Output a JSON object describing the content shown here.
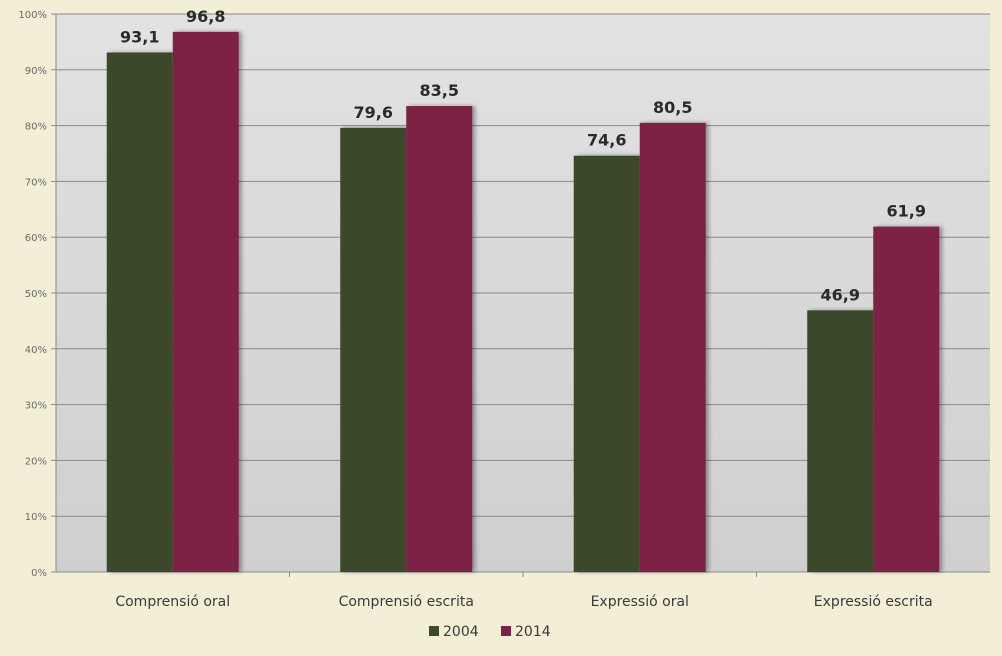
{
  "chart_data": {
    "type": "bar",
    "categories": [
      "Comprensió oral",
      "Comprensió escrita",
      "Expressió oral",
      "Expressió escrita"
    ],
    "series": [
      {
        "name": "2004",
        "values": [
          93.1,
          79.6,
          74.6,
          46.9
        ],
        "labels": [
          "93,1",
          "79,6",
          "74,6",
          "46,9"
        ],
        "color": "#3a4a2a"
      },
      {
        "name": "2014",
        "values": [
          96.8,
          83.5,
          80.5,
          61.9
        ],
        "labels": [
          "96,8",
          "83,5",
          "80,5",
          "61,9"
        ],
        "color": "#7d2244"
      }
    ],
    "ylim": [
      0,
      100
    ],
    "yticks": [
      0,
      10,
      20,
      30,
      40,
      50,
      60,
      70,
      80,
      90,
      100
    ],
    "ytick_labels": [
      "0%",
      "10%",
      "20%",
      "30%",
      "40%",
      "50%",
      "60%",
      "70%",
      "80%",
      "90%",
      "100%"
    ],
    "grid": true,
    "legend_position": "bottom",
    "plot_background": "#d8d8d8",
    "page_background": "#f3efd7"
  }
}
